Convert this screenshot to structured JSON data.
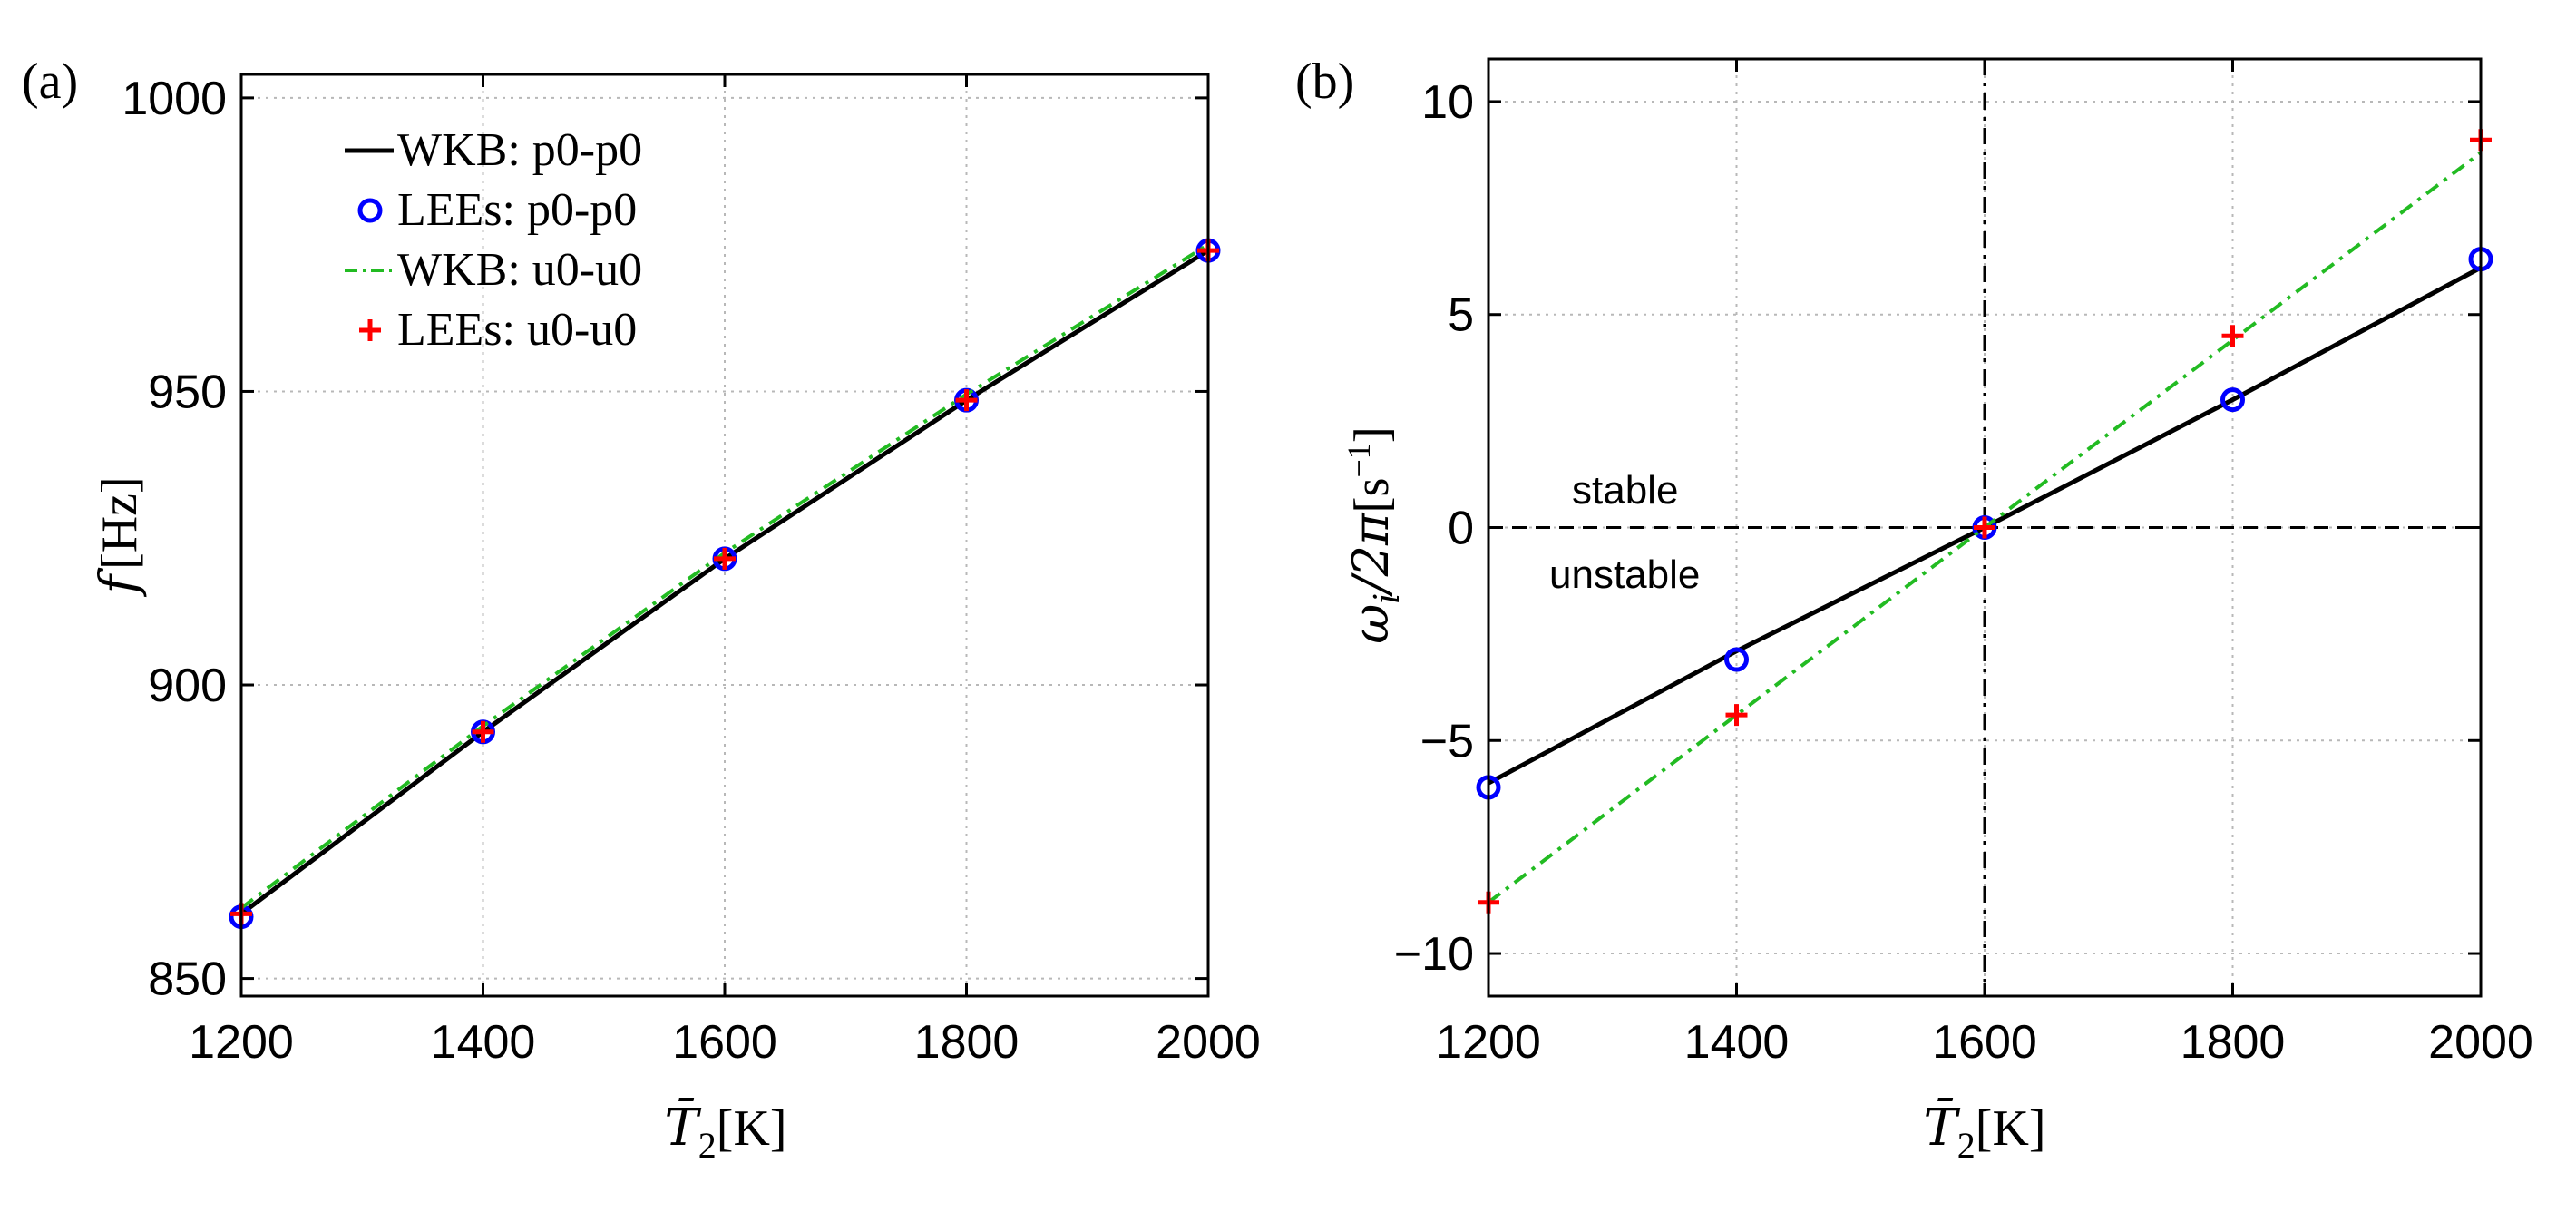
{
  "chart_data": [
    {
      "panel_label": "(a)",
      "type": "line",
      "xlabel_symbol": "T̄",
      "xlabel_sub": "2",
      "xlabel_unit": "[K]",
      "ylabel_symbol": "f",
      "ylabel_unit": "[Hz]",
      "xlim": [
        1200,
        2000
      ],
      "ylim": [
        847,
        1004
      ],
      "xticks": [
        1200,
        1400,
        1600,
        1800,
        2000
      ],
      "yticks": [
        850,
        900,
        950,
        1000
      ],
      "grid": true,
      "legend_position": "top-left",
      "series": [
        {
          "name": "WKB: p0-p0",
          "style": "solid",
          "color": "#000000",
          "x": [
            1200,
            1400,
            1600,
            1800,
            2000
          ],
          "values": [
            861,
            892,
            921.5,
            948.5,
            974
          ]
        },
        {
          "name": "LEEs: p0-p0",
          "style": "circle",
          "color": "#0000ff",
          "x": [
            1200,
            1400,
            1600,
            1800,
            2000
          ],
          "values": [
            860.5,
            892,
            921.5,
            948.5,
            974
          ]
        },
        {
          "name": "WKB: u0-u0",
          "style": "dashdot",
          "color": "#22bb22",
          "x": [
            1200,
            1400,
            1600,
            1800,
            2000
          ],
          "values": [
            862,
            893,
            922.5,
            949.5,
            975
          ]
        },
        {
          "name": "LEEs: u0-u0",
          "style": "plus",
          "color": "#ff0000",
          "x": [
            1200,
            1400,
            1600,
            1800,
            2000
          ],
          "values": [
            861,
            892,
            921.5,
            948.5,
            974
          ]
        }
      ]
    },
    {
      "panel_label": "(b)",
      "type": "line",
      "xlabel_symbol": "T̄",
      "xlabel_sub": "2",
      "xlabel_unit": "[K]",
      "ylabel_main": "ω",
      "ylabel_sub": "i",
      "ylabel_mid": "/2π",
      "ylabel_unit": "[s",
      "ylabel_exp": "−1",
      "ylabel_close": "]",
      "xlim": [
        1200,
        2000
      ],
      "ylim": [
        -11,
        11
      ],
      "xticks": [
        1200,
        1400,
        1600,
        1800,
        2000
      ],
      "yticks": [
        -10,
        -5,
        0,
        5,
        10
      ],
      "ytick_labels": [
        "−10",
        "−5",
        "0",
        "5",
        "10"
      ],
      "grid": true,
      "reference_lines": {
        "x": 1600,
        "y": 0
      },
      "annotations": [
        "stable",
        "unstable"
      ],
      "series": [
        {
          "name": "WKB: p0-p0",
          "style": "solid",
          "color": "#000000",
          "x": [
            1200,
            1400,
            1600,
            1800,
            2000
          ],
          "values": [
            -6.0,
            -2.9,
            0,
            3.0,
            6.1
          ]
        },
        {
          "name": "LEEs: p0-p0",
          "style": "circle",
          "color": "#0000ff",
          "x": [
            1200,
            1400,
            1600,
            1800,
            2000
          ],
          "values": [
            -6.1,
            -3.1,
            0,
            3.0,
            6.3
          ]
        },
        {
          "name": "WKB: u0-u0",
          "style": "dashdot",
          "color": "#22bb22",
          "x": [
            1200,
            1400,
            1600,
            1800,
            2000
          ],
          "values": [
            -8.8,
            -4.4,
            0,
            4.4,
            8.8
          ]
        },
        {
          "name": "LEEs: u0-u0",
          "style": "plus",
          "color": "#ff0000",
          "x": [
            1200,
            1400,
            1600,
            1800,
            2000
          ],
          "values": [
            -8.8,
            -4.4,
            0,
            4.5,
            9.1
          ]
        }
      ]
    }
  ]
}
